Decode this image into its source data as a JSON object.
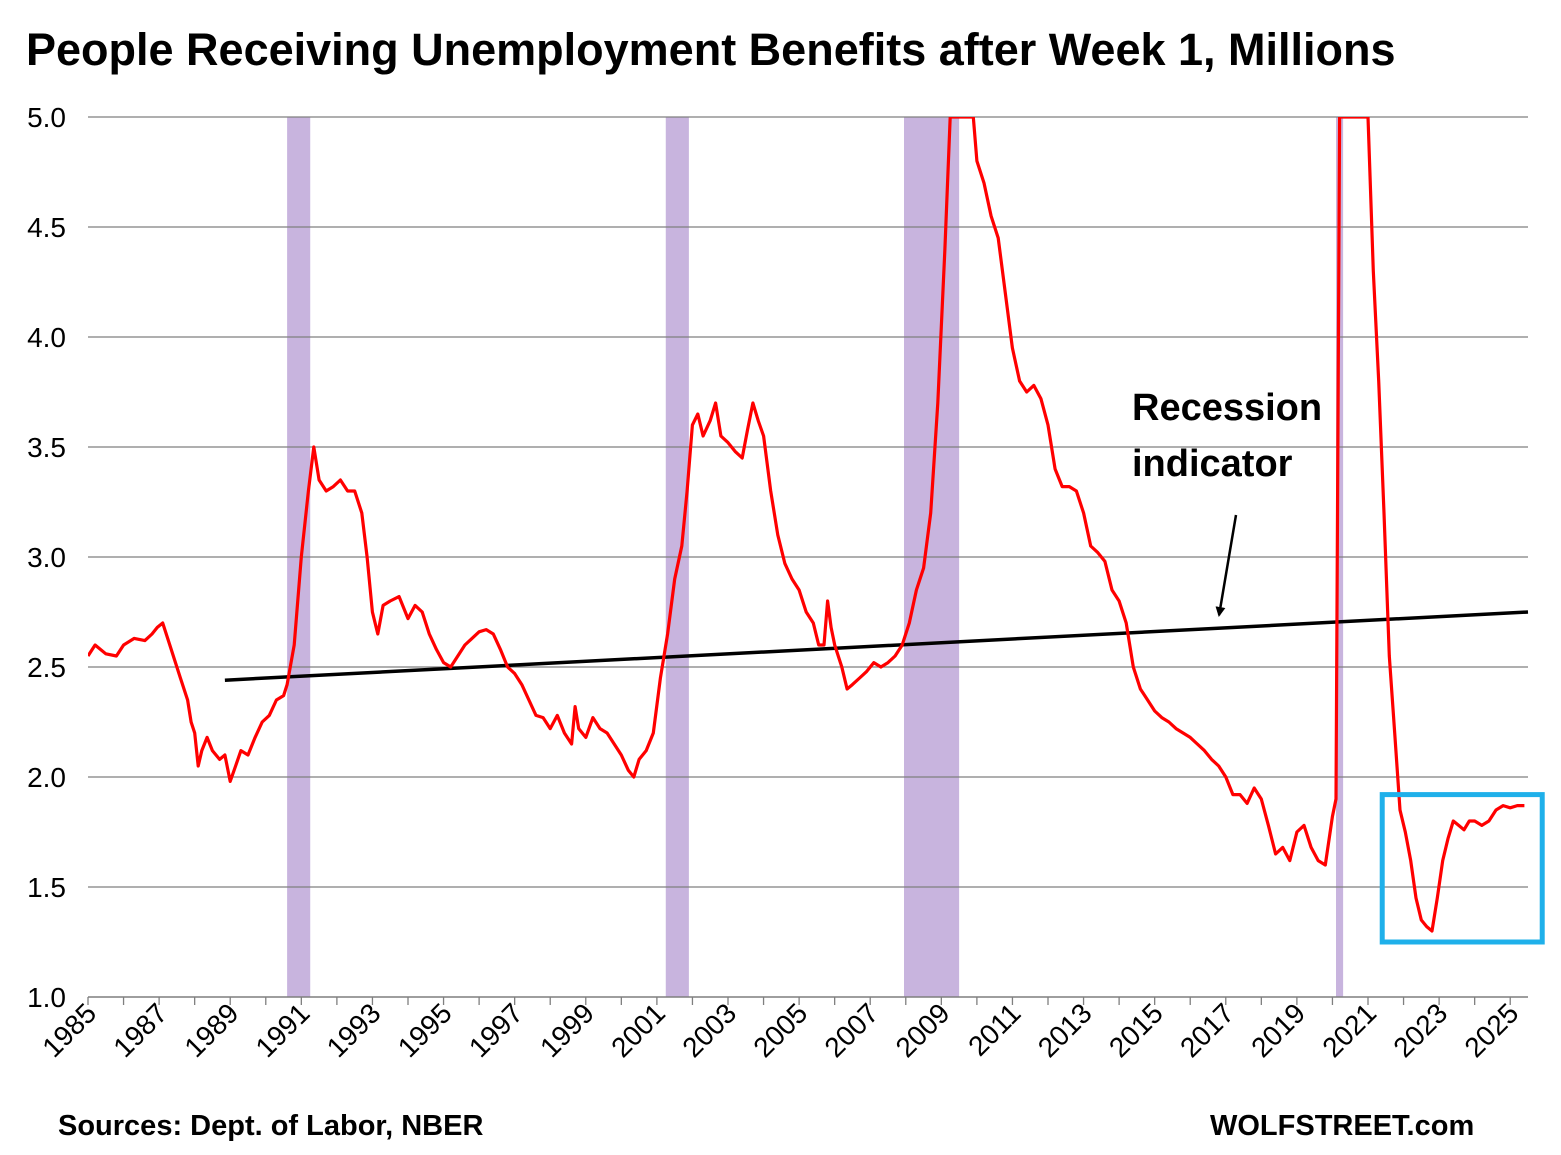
{
  "chart_data": {
    "type": "line",
    "title": "People Receiving Unemployment Benefits after Week 1, Millions",
    "xlabel": "",
    "ylabel": "",
    "xlim": [
      1985,
      2025.5
    ],
    "ylim": [
      1.0,
      5.0
    ],
    "grid": true,
    "x_tick_labels": [
      "1985",
      "1987",
      "1989",
      "1991",
      "1993",
      "1995",
      "1997",
      "1999",
      "2001",
      "2003",
      "2005",
      "2007",
      "2009",
      "2011",
      "2013",
      "2015",
      "2017",
      "2019",
      "2021",
      "2023",
      "2025"
    ],
    "y_tick_labels": [
      "1.0",
      "1.5",
      "2.0",
      "2.5",
      "3.0",
      "3.5",
      "4.0",
      "4.5",
      "5.0"
    ],
    "recession_bands": [
      {
        "start": 1990.6,
        "end": 1991.25
      },
      {
        "start": 2001.25,
        "end": 2001.9
      },
      {
        "start": 2007.95,
        "end": 2009.5
      },
      {
        "start": 2020.1,
        "end": 2020.3
      }
    ],
    "series": [
      {
        "color": "#ff0000",
        "points": [
          [
            1985.0,
            2.55
          ],
          [
            1985.2,
            2.6
          ],
          [
            1985.5,
            2.56
          ],
          [
            1985.8,
            2.55
          ],
          [
            1986.0,
            2.6
          ],
          [
            1986.3,
            2.63
          ],
          [
            1986.6,
            2.62
          ],
          [
            1986.8,
            2.65
          ],
          [
            1986.95,
            2.68
          ],
          [
            1987.1,
            2.7
          ],
          [
            1987.3,
            2.6
          ],
          [
            1987.6,
            2.45
          ],
          [
            1987.8,
            2.35
          ],
          [
            1987.9,
            2.25
          ],
          [
            1988.0,
            2.2
          ],
          [
            1988.1,
            2.05
          ],
          [
            1988.2,
            2.12
          ],
          [
            1988.35,
            2.18
          ],
          [
            1988.5,
            2.12
          ],
          [
            1988.7,
            2.08
          ],
          [
            1988.85,
            2.1
          ],
          [
            1989.0,
            1.98
          ],
          [
            1989.15,
            2.05
          ],
          [
            1989.3,
            2.12
          ],
          [
            1989.5,
            2.1
          ],
          [
            1989.7,
            2.18
          ],
          [
            1989.9,
            2.25
          ],
          [
            1990.1,
            2.28
          ],
          [
            1990.3,
            2.35
          ],
          [
            1990.5,
            2.37
          ],
          [
            1990.6,
            2.42
          ],
          [
            1990.8,
            2.6
          ],
          [
            1991.0,
            3.0
          ],
          [
            1991.2,
            3.3
          ],
          [
            1991.35,
            3.5
          ],
          [
            1991.5,
            3.35
          ],
          [
            1991.7,
            3.3
          ],
          [
            1991.9,
            3.32
          ],
          [
            1992.1,
            3.35
          ],
          [
            1992.3,
            3.3
          ],
          [
            1992.5,
            3.3
          ],
          [
            1992.7,
            3.2
          ],
          [
            1992.85,
            3.0
          ],
          [
            1993.0,
            2.75
          ],
          [
            1993.15,
            2.65
          ],
          [
            1993.3,
            2.78
          ],
          [
            1993.5,
            2.8
          ],
          [
            1993.75,
            2.82
          ],
          [
            1994.0,
            2.72
          ],
          [
            1994.2,
            2.78
          ],
          [
            1994.4,
            2.75
          ],
          [
            1994.6,
            2.65
          ],
          [
            1994.8,
            2.58
          ],
          [
            1995.0,
            2.52
          ],
          [
            1995.2,
            2.5
          ],
          [
            1995.4,
            2.55
          ],
          [
            1995.6,
            2.6
          ],
          [
            1995.8,
            2.63
          ],
          [
            1996.0,
            2.66
          ],
          [
            1996.2,
            2.67
          ],
          [
            1996.4,
            2.65
          ],
          [
            1996.6,
            2.58
          ],
          [
            1996.8,
            2.5
          ],
          [
            1997.0,
            2.47
          ],
          [
            1997.2,
            2.42
          ],
          [
            1997.4,
            2.35
          ],
          [
            1997.6,
            2.28
          ],
          [
            1997.8,
            2.27
          ],
          [
            1998.0,
            2.22
          ],
          [
            1998.2,
            2.28
          ],
          [
            1998.4,
            2.2
          ],
          [
            1998.6,
            2.15
          ],
          [
            1998.7,
            2.32
          ],
          [
            1998.8,
            2.22
          ],
          [
            1999.0,
            2.18
          ],
          [
            1999.2,
            2.27
          ],
          [
            1999.4,
            2.22
          ],
          [
            1999.6,
            2.2
          ],
          [
            1999.8,
            2.15
          ],
          [
            2000.0,
            2.1
          ],
          [
            2000.2,
            2.03
          ],
          [
            2000.35,
            2.0
          ],
          [
            2000.5,
            2.08
          ],
          [
            2000.7,
            2.12
          ],
          [
            2000.9,
            2.2
          ],
          [
            2001.1,
            2.45
          ],
          [
            2001.3,
            2.65
          ],
          [
            2001.5,
            2.9
          ],
          [
            2001.7,
            3.05
          ],
          [
            2001.85,
            3.3
          ],
          [
            2002.0,
            3.6
          ],
          [
            2002.15,
            3.65
          ],
          [
            2002.3,
            3.55
          ],
          [
            2002.5,
            3.62
          ],
          [
            2002.65,
            3.7
          ],
          [
            2002.8,
            3.55
          ],
          [
            2003.0,
            3.52
          ],
          [
            2003.2,
            3.48
          ],
          [
            2003.4,
            3.45
          ],
          [
            2003.55,
            3.58
          ],
          [
            2003.7,
            3.7
          ],
          [
            2003.85,
            3.62
          ],
          [
            2004.0,
            3.55
          ],
          [
            2004.2,
            3.3
          ],
          [
            2004.4,
            3.1
          ],
          [
            2004.6,
            2.97
          ],
          [
            2004.8,
            2.9
          ],
          [
            2005.0,
            2.85
          ],
          [
            2005.2,
            2.75
          ],
          [
            2005.4,
            2.7
          ],
          [
            2005.55,
            2.6
          ],
          [
            2005.7,
            2.6
          ],
          [
            2005.8,
            2.8
          ],
          [
            2005.9,
            2.68
          ],
          [
            2006.0,
            2.6
          ],
          [
            2006.2,
            2.5
          ],
          [
            2006.35,
            2.4
          ],
          [
            2006.5,
            2.42
          ],
          [
            2006.7,
            2.45
          ],
          [
            2006.9,
            2.48
          ],
          [
            2007.1,
            2.52
          ],
          [
            2007.3,
            2.5
          ],
          [
            2007.5,
            2.52
          ],
          [
            2007.7,
            2.55
          ],
          [
            2007.9,
            2.6
          ],
          [
            2008.1,
            2.7
          ],
          [
            2008.3,
            2.85
          ],
          [
            2008.5,
            2.95
          ],
          [
            2008.7,
            3.2
          ],
          [
            2008.9,
            3.7
          ],
          [
            2009.1,
            4.4
          ],
          [
            2009.25,
            5.0
          ],
          [
            2009.7,
            5.0
          ],
          [
            2009.9,
            5.0
          ],
          [
            2010.0,
            4.8
          ],
          [
            2010.2,
            4.7
          ],
          [
            2010.4,
            4.55
          ],
          [
            2010.6,
            4.45
          ],
          [
            2010.8,
            4.2
          ],
          [
            2011.0,
            3.95
          ],
          [
            2011.2,
            3.8
          ],
          [
            2011.4,
            3.75
          ],
          [
            2011.6,
            3.78
          ],
          [
            2011.8,
            3.72
          ],
          [
            2012.0,
            3.6
          ],
          [
            2012.2,
            3.4
          ],
          [
            2012.4,
            3.32
          ],
          [
            2012.6,
            3.32
          ],
          [
            2012.8,
            3.3
          ],
          [
            2013.0,
            3.2
          ],
          [
            2013.2,
            3.05
          ],
          [
            2013.4,
            3.02
          ],
          [
            2013.6,
            2.98
          ],
          [
            2013.8,
            2.85
          ],
          [
            2014.0,
            2.8
          ],
          [
            2014.2,
            2.7
          ],
          [
            2014.4,
            2.5
          ],
          [
            2014.6,
            2.4
          ],
          [
            2014.8,
            2.35
          ],
          [
            2015.0,
            2.3
          ],
          [
            2015.2,
            2.27
          ],
          [
            2015.4,
            2.25
          ],
          [
            2015.6,
            2.22
          ],
          [
            2015.8,
            2.2
          ],
          [
            2016.0,
            2.18
          ],
          [
            2016.2,
            2.15
          ],
          [
            2016.4,
            2.12
          ],
          [
            2016.6,
            2.08
          ],
          [
            2016.8,
            2.05
          ],
          [
            2017.0,
            2.0
          ],
          [
            2017.2,
            1.92
          ],
          [
            2017.4,
            1.92
          ],
          [
            2017.6,
            1.88
          ],
          [
            2017.8,
            1.95
          ],
          [
            2018.0,
            1.9
          ],
          [
            2018.2,
            1.78
          ],
          [
            2018.4,
            1.65
          ],
          [
            2018.6,
            1.68
          ],
          [
            2018.8,
            1.62
          ],
          [
            2019.0,
            1.75
          ],
          [
            2019.2,
            1.78
          ],
          [
            2019.4,
            1.68
          ],
          [
            2019.6,
            1.62
          ],
          [
            2019.8,
            1.6
          ],
          [
            2020.0,
            1.82
          ],
          [
            2020.1,
            1.9
          ],
          [
            2020.2,
            5.0
          ],
          [
            2020.6,
            5.0
          ],
          [
            2021.0,
            5.0
          ],
          [
            2021.15,
            4.3
          ],
          [
            2021.3,
            3.8
          ],
          [
            2021.45,
            3.2
          ],
          [
            2021.6,
            2.55
          ],
          [
            2021.75,
            2.2
          ],
          [
            2021.9,
            1.85
          ],
          [
            2022.05,
            1.75
          ],
          [
            2022.2,
            1.62
          ],
          [
            2022.35,
            1.45
          ],
          [
            2022.5,
            1.35
          ],
          [
            2022.65,
            1.32
          ],
          [
            2022.8,
            1.3
          ],
          [
            2022.95,
            1.45
          ],
          [
            2023.1,
            1.62
          ],
          [
            2023.25,
            1.72
          ],
          [
            2023.4,
            1.8
          ],
          [
            2023.55,
            1.78
          ],
          [
            2023.7,
            1.76
          ],
          [
            2023.85,
            1.8
          ],
          [
            2024.0,
            1.8
          ],
          [
            2024.2,
            1.78
          ],
          [
            2024.4,
            1.8
          ],
          [
            2024.6,
            1.85
          ],
          [
            2024.8,
            1.87
          ],
          [
            2025.0,
            1.86
          ],
          [
            2025.2,
            1.87
          ],
          [
            2025.4,
            1.87
          ]
        ]
      }
    ],
    "trend_line": {
      "color": "#000000",
      "points": [
        [
          1988.85,
          2.44
        ],
        [
          2025.5,
          2.75
        ]
      ]
    },
    "annotations": [
      {
        "text_lines": [
          "Recession",
          "indicator"
        ],
        "arrow_to": [
          2016.7,
          2.7
        ]
      }
    ],
    "highlight_box": {
      "color": "#1fb0ea",
      "x_range": [
        2021.4,
        2025.9
      ],
      "y_range": [
        1.25,
        1.92
      ]
    },
    "source": "Sources: Dept. of Labor, NBER",
    "watermark": "WOLFSTREET.com"
  }
}
